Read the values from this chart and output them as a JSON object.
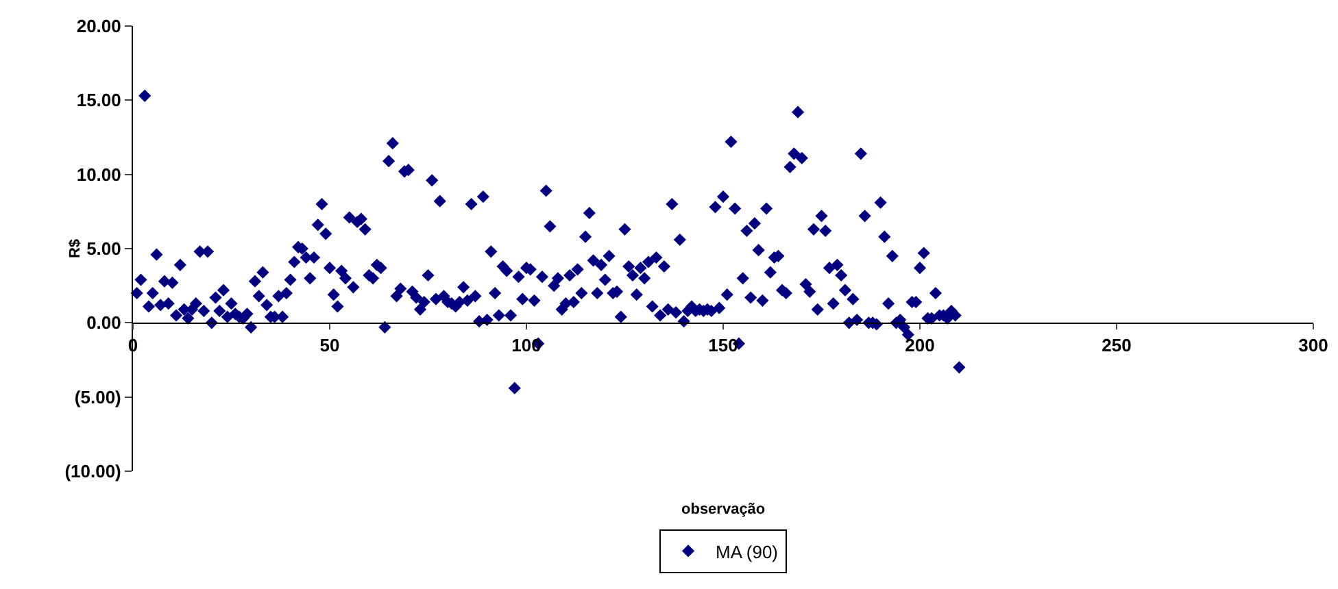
{
  "chart_data": {
    "type": "scatter",
    "xlabel": "observação",
    "ylabel": "R$",
    "x": [
      1,
      2,
      3,
      4,
      5,
      6,
      7,
      8,
      9,
      10,
      11,
      12,
      13,
      14,
      15,
      16,
      17,
      18,
      19,
      20,
      21,
      22,
      23,
      24,
      25,
      26,
      27,
      28,
      29,
      30,
      31,
      32,
      33,
      34,
      35,
      36,
      37,
      38,
      39,
      40,
      41,
      42,
      43,
      44,
      45,
      46,
      47,
      48,
      49,
      50,
      51,
      52,
      53,
      54,
      55,
      56,
      57,
      58,
      59,
      60,
      61,
      62,
      63,
      64,
      65,
      66,
      67,
      68,
      69,
      70,
      71,
      72,
      73,
      74,
      75,
      76,
      77,
      78,
      79,
      80,
      81,
      82,
      83,
      84,
      85,
      86,
      87,
      88,
      89,
      90,
      91,
      92,
      93,
      94,
      95,
      96,
      97,
      98,
      99,
      100,
      101,
      102,
      103,
      104,
      105,
      106,
      107,
      108,
      109,
      110,
      111,
      112,
      113,
      114,
      115,
      116,
      117,
      118,
      119,
      120,
      121,
      122,
      123,
      124,
      125,
      126,
      127,
      128,
      129,
      130,
      131,
      132,
      133,
      134,
      135,
      136,
      137,
      138,
      139,
      140,
      141,
      142,
      143,
      144,
      145,
      146,
      147,
      148,
      149,
      150,
      151,
      152,
      153,
      154,
      155,
      156,
      157,
      158,
      159,
      160,
      161,
      162,
      163,
      164,
      165,
      166,
      167,
      168,
      169,
      170,
      171,
      172,
      173,
      174,
      175,
      176,
      177,
      178,
      179,
      180,
      181,
      182,
      183,
      184,
      185,
      186,
      187,
      188,
      189,
      190,
      191,
      192,
      193,
      194,
      195,
      196,
      197,
      198,
      199,
      200,
      201,
      202,
      203,
      204,
      205,
      206,
      207,
      208,
      209,
      210
    ],
    "series": [
      {
        "name": "MA (90)",
        "color": "#000080",
        "values": [
          2.0,
          2.9,
          15.3,
          1.1,
          2.0,
          4.6,
          1.2,
          2.8,
          1.3,
          2.7,
          0.5,
          3.9,
          0.9,
          0.3,
          0.9,
          1.3,
          4.8,
          0.8,
          4.8,
          0.0,
          1.7,
          0.8,
          2.2,
          0.4,
          1.3,
          0.6,
          0.4,
          0.3,
          0.6,
          -0.3,
          2.8,
          1.8,
          3.4,
          1.2,
          0.4,
          0.4,
          1.8,
          0.4,
          2.0,
          2.9,
          4.1,
          5.1,
          5.0,
          4.4,
          3.0,
          4.4,
          6.6,
          8.0,
          6.0,
          3.7,
          1.9,
          1.1,
          3.5,
          3.0,
          7.1,
          2.4,
          6.8,
          7.0,
          6.3,
          3.2,
          3.0,
          3.9,
          3.7,
          -0.3,
          10.9,
          12.1,
          1.8,
          2.3,
          10.2,
          10.3,
          2.1,
          1.7,
          0.9,
          1.4,
          3.2,
          9.6,
          1.6,
          8.2,
          1.8,
          1.4,
          1.3,
          1.1,
          1.4,
          2.4,
          1.5,
          8.0,
          1.8,
          0.1,
          8.5,
          0.2,
          4.8,
          2.0,
          0.5,
          3.8,
          3.5,
          0.5,
          -4.4,
          3.1,
          1.6,
          3.7,
          3.6,
          1.5,
          -1.4,
          3.1,
          8.9,
          6.5,
          2.5,
          3.0,
          0.9,
          1.3,
          3.2,
          1.4,
          3.6,
          2.0,
          5.8,
          7.4,
          4.2,
          2.0,
          3.9,
          2.9,
          4.5,
          2.0,
          2.1,
          0.4,
          6.3,
          3.8,
          3.2,
          1.9,
          3.7,
          3.0,
          4.1,
          1.1,
          4.4,
          0.5,
          3.8,
          0.9,
          8.0,
          0.7,
          5.6,
          0.1,
          0.8,
          1.1,
          0.8,
          0.9,
          0.8,
          0.9,
          0.8,
          7.8,
          1.0,
          8.5,
          1.9,
          12.2,
          7.7,
          -1.4,
          3.0,
          6.2,
          1.7,
          6.7,
          4.9,
          1.5,
          7.7,
          3.4,
          4.4,
          4.5,
          2.2,
          2.0,
          10.5,
          11.4,
          14.2,
          11.1,
          2.6,
          2.1,
          6.3,
          0.9,
          7.2,
          6.2,
          3.7,
          1.3,
          3.9,
          3.2,
          2.2,
          0.0,
          1.6,
          0.2,
          11.4,
          7.2,
          0.0,
          0.0,
          -0.1,
          8.1,
          5.8,
          1.3,
          4.5,
          0.0,
          0.2,
          -0.3,
          -0.8,
          1.4,
          1.4,
          3.7,
          4.7,
          0.3,
          0.3,
          2.0,
          0.5,
          0.5,
          0.3,
          0.8,
          0.5,
          -3.0
        ]
      }
    ],
    "xlim": [
      0,
      300
    ],
    "xticks": [
      0,
      50,
      100,
      150,
      200,
      250,
      300
    ],
    "ylim": [
      -10,
      20
    ],
    "yticks": [
      {
        "value": -10,
        "label": "(10.00)"
      },
      {
        "value": -5,
        "label": "(5.00)"
      },
      {
        "value": 0,
        "label": "0.00"
      },
      {
        "value": 5,
        "label": "5.00"
      },
      {
        "value": 10,
        "label": "10.00"
      },
      {
        "value": 15,
        "label": "15.00"
      },
      {
        "value": 20,
        "label": "20.00"
      }
    ],
    "marker": "diamond",
    "grid": false,
    "legend": "bottom"
  }
}
